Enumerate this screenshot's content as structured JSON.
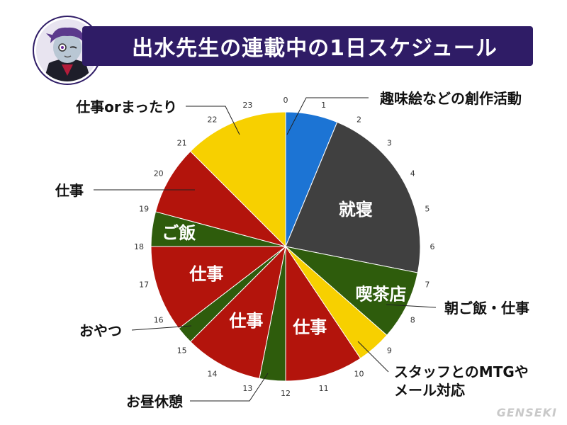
{
  "header": {
    "title": "出水先生の連載中の1日スケジュール"
  },
  "watermark": "GENSEKI",
  "chart_data": {
    "type": "pie",
    "title": "出水先生の連載中の1日スケジュール",
    "unit": "hour",
    "hour_ticks": [
      "0",
      "1",
      "2",
      "3",
      "4",
      "5",
      "6",
      "7",
      "8",
      "9",
      "10",
      "11",
      "12",
      "13",
      "14",
      "15",
      "16",
      "17",
      "18",
      "19",
      "20",
      "21",
      "22",
      "23"
    ],
    "segments": [
      {
        "start": 0,
        "end": 1.5,
        "color": "#1c74d4",
        "inner_label": "",
        "category": "趣味絵などの創作活動"
      },
      {
        "start": 1.5,
        "end": 6.75,
        "color": "#404040",
        "inner_label": "就寝",
        "category": "就寝"
      },
      {
        "start": 6.75,
        "end": 8.75,
        "color": "#2e5c0c",
        "inner_label": "喫茶店",
        "category": "朝ご飯・仕事"
      },
      {
        "start": 8.75,
        "end": 9.75,
        "color": "#f7d000",
        "inner_label": "",
        "category": "スタッフとのMTGやメール対応"
      },
      {
        "start": 9.75,
        "end": 12,
        "color": "#b3140c",
        "inner_label": "仕事",
        "category": "仕事"
      },
      {
        "start": 12,
        "end": 12.75,
        "color": "#2e5c0c",
        "inner_label": "",
        "category": "お昼休憩"
      },
      {
        "start": 12.75,
        "end": 15,
        "color": "#b3140c",
        "inner_label": "仕事",
        "category": "仕事"
      },
      {
        "start": 15,
        "end": 15.5,
        "color": "#2e5c0c",
        "inner_label": "",
        "category": "おやつ"
      },
      {
        "start": 15.5,
        "end": 18,
        "color": "#b3140c",
        "inner_label": "仕事",
        "category": "仕事"
      },
      {
        "start": 18,
        "end": 19,
        "color": "#2e5c0c",
        "inner_label": "ご飯",
        "category": "ご飯"
      },
      {
        "start": 19,
        "end": 21,
        "color": "#b3140c",
        "inner_label": "",
        "category": "仕事"
      },
      {
        "start": 21,
        "end": 24,
        "color": "#f7d000",
        "inner_label": "",
        "category": "仕事orまったり"
      }
    ],
    "callouts": [
      {
        "text": "趣味絵などの創作活動",
        "lines": [
          "趣味絵などの創作活動"
        ],
        "hour": 0.75,
        "side": "right"
      },
      {
        "text": "仕事orまったり",
        "lines": [
          "仕事orまったり"
        ],
        "hour": 22.3,
        "side": "left"
      },
      {
        "text": "仕事",
        "lines": [
          "仕事"
        ],
        "hour": 20,
        "side": "left"
      },
      {
        "text": "朝ご飯・仕事",
        "lines": [
          "朝ご飯・仕事"
        ],
        "hour": 7.9,
        "side": "right"
      },
      {
        "text": "おやつ",
        "lines": [
          "おやつ"
        ],
        "hour": 15.25,
        "side": "left"
      },
      {
        "text": "スタッフとのMTGやメール対応",
        "lines": [
          "スタッフとのMTGや",
          "メール対応"
        ],
        "hour": 9.25,
        "side": "right"
      },
      {
        "text": "お昼休憩",
        "lines": [
          "お昼休憩"
        ],
        "hour": 12.4,
        "side": "left"
      }
    ]
  }
}
